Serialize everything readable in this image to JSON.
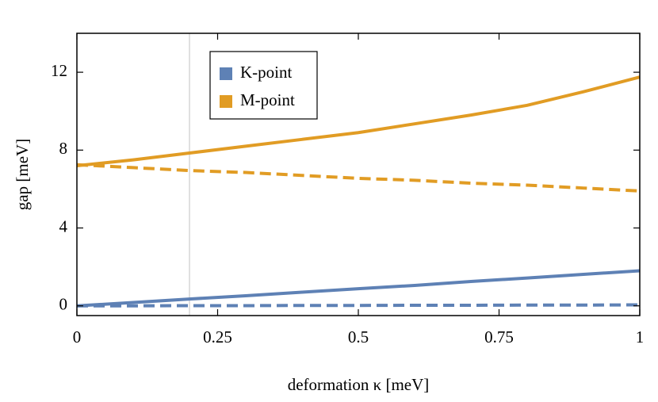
{
  "chart_data": {
    "type": "line",
    "xlabel": "deformation κ [meV]",
    "ylabel": "gap [meV]",
    "x": [
      0,
      0.1,
      0.2,
      0.3,
      0.4,
      0.5,
      0.6,
      0.7,
      0.8,
      0.9,
      1
    ],
    "series": [
      {
        "name": "K-point",
        "color": "#5e81b5",
        "values": [
          0,
          0.17,
          0.35,
          0.52,
          0.7,
          0.88,
          1.05,
          1.25,
          1.43,
          1.62,
          1.8
        ],
        "values_dashed": [
          0,
          0,
          0.01,
          0.01,
          0.02,
          0.02,
          0.03,
          0.03,
          0.04,
          0.04,
          0.05
        ]
      },
      {
        "name": "M-point",
        "color": "#e19c24",
        "values": [
          7.2,
          7.5,
          7.85,
          8.2,
          8.55,
          8.9,
          9.35,
          9.8,
          10.3,
          11.0,
          11.75
        ],
        "values_dashed": [
          7.25,
          7.1,
          6.95,
          6.85,
          6.7,
          6.55,
          6.45,
          6.3,
          6.2,
          6.05,
          5.9
        ]
      }
    ],
    "vline": 0.2,
    "xlim": [
      0,
      1
    ],
    "xticks": [
      0,
      0.25,
      0.5,
      0.75,
      1
    ],
    "ylim": [
      -0.5,
      14
    ],
    "yticks": [
      0,
      4,
      8,
      12
    ],
    "legend": "upper left"
  }
}
